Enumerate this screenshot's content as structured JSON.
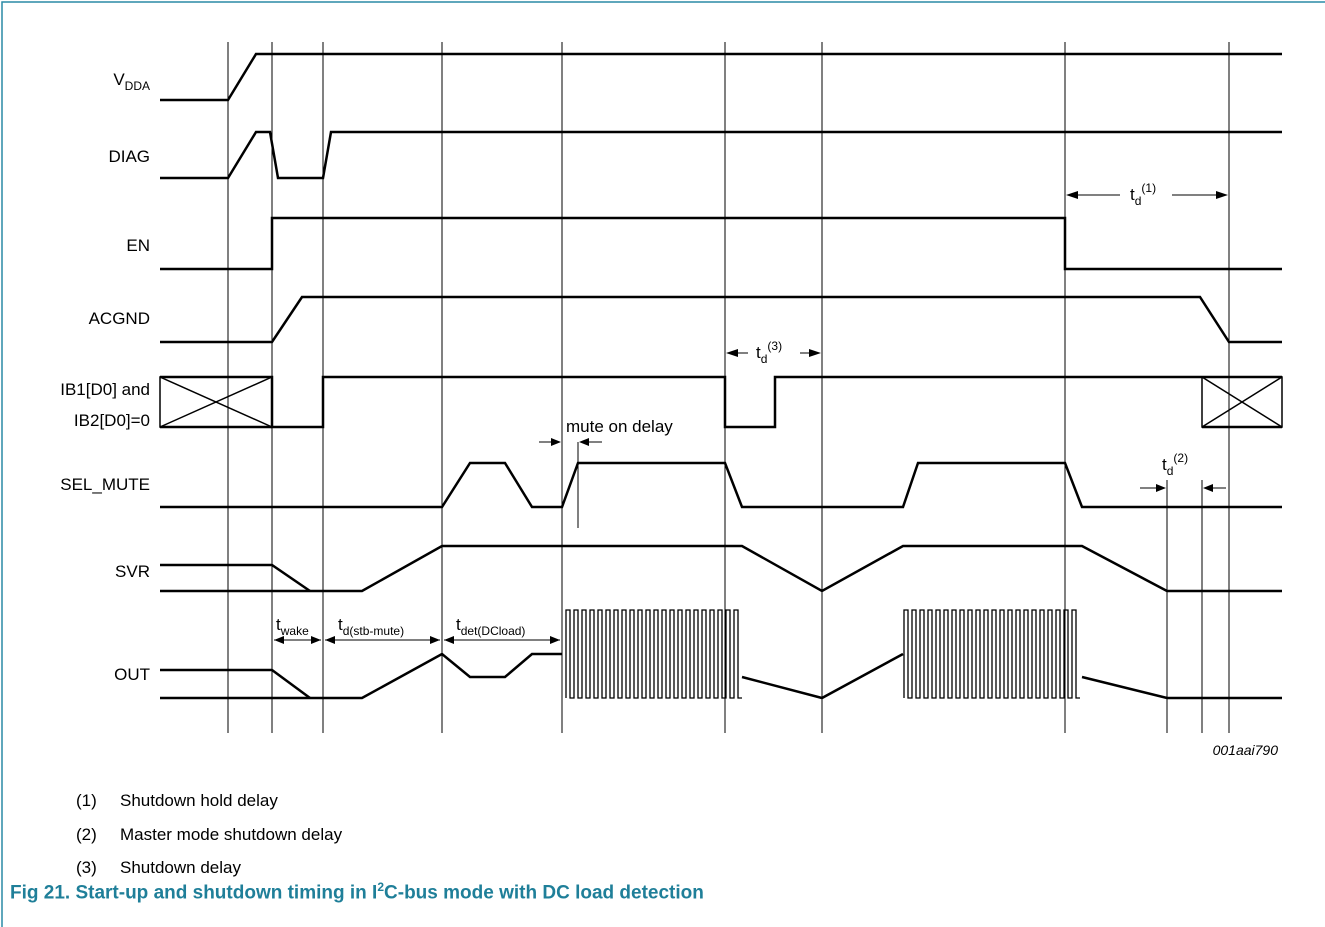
{
  "signals": {
    "vdda": {
      "main": "V",
      "sub": "DDA"
    },
    "diag": "DIAG",
    "en": "EN",
    "acgnd": "ACGND",
    "ib_line1": "IB1[D0] and",
    "ib_line2": "IB2[D0]=0",
    "sel_mute": "SEL_MUTE",
    "svr": "SVR",
    "out": "OUT"
  },
  "annotations": {
    "td1": {
      "main": "t",
      "sub": "d",
      "sup": "(1)"
    },
    "td2": {
      "main": "t",
      "sub": "d",
      "sup": "(2)"
    },
    "td3": {
      "main": "t",
      "sub": "d",
      "sup": "(3)"
    },
    "mute_on_delay": "mute on delay",
    "twake": {
      "main": "t",
      "sub": "wake"
    },
    "td_stb_mute": {
      "main": "t",
      "sub": "d(stb-mute)"
    },
    "tdet_dcload": {
      "main": "t",
      "sub": "det(DCload)"
    }
  },
  "figure_id": "001aai790",
  "notes": [
    {
      "num": "(1)",
      "text": "Shutdown hold delay"
    },
    {
      "num": "(2)",
      "text": "Master mode shutdown delay"
    },
    {
      "num": "(3)",
      "text": "Shutdown delay"
    }
  ],
  "caption": {
    "prefix": "Fig 21.   Start-up and shutdown timing in I",
    "sup": "2",
    "suffix": "C-bus mode with DC load detection"
  },
  "colors": {
    "frame": "#2a8aa6",
    "caption": "#1f7f99",
    "waveform": "#000000",
    "guides": "#000000"
  }
}
